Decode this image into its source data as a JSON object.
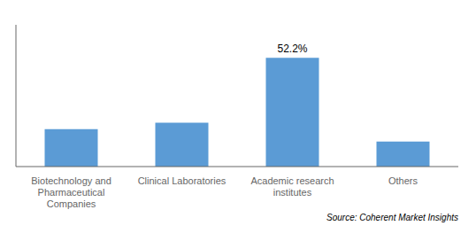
{
  "chart_data": {
    "type": "bar",
    "categories": [
      "Biotechnology and\nPharmaceutical\nCompanies",
      "Clinical Laboratories",
      "Academic research\ninstitutes",
      "Others"
    ],
    "values": [
      18,
      21,
      52.2,
      12
    ],
    "color": "#5B9BD5",
    "ylim": [
      0,
      68
    ],
    "grid": false,
    "tick_labels": "x",
    "annotations": [
      {
        "text": "52.2%",
        "category": "Academic research\ninstitutes"
      }
    ],
    "source": "Source: Coherent Market Insights"
  }
}
